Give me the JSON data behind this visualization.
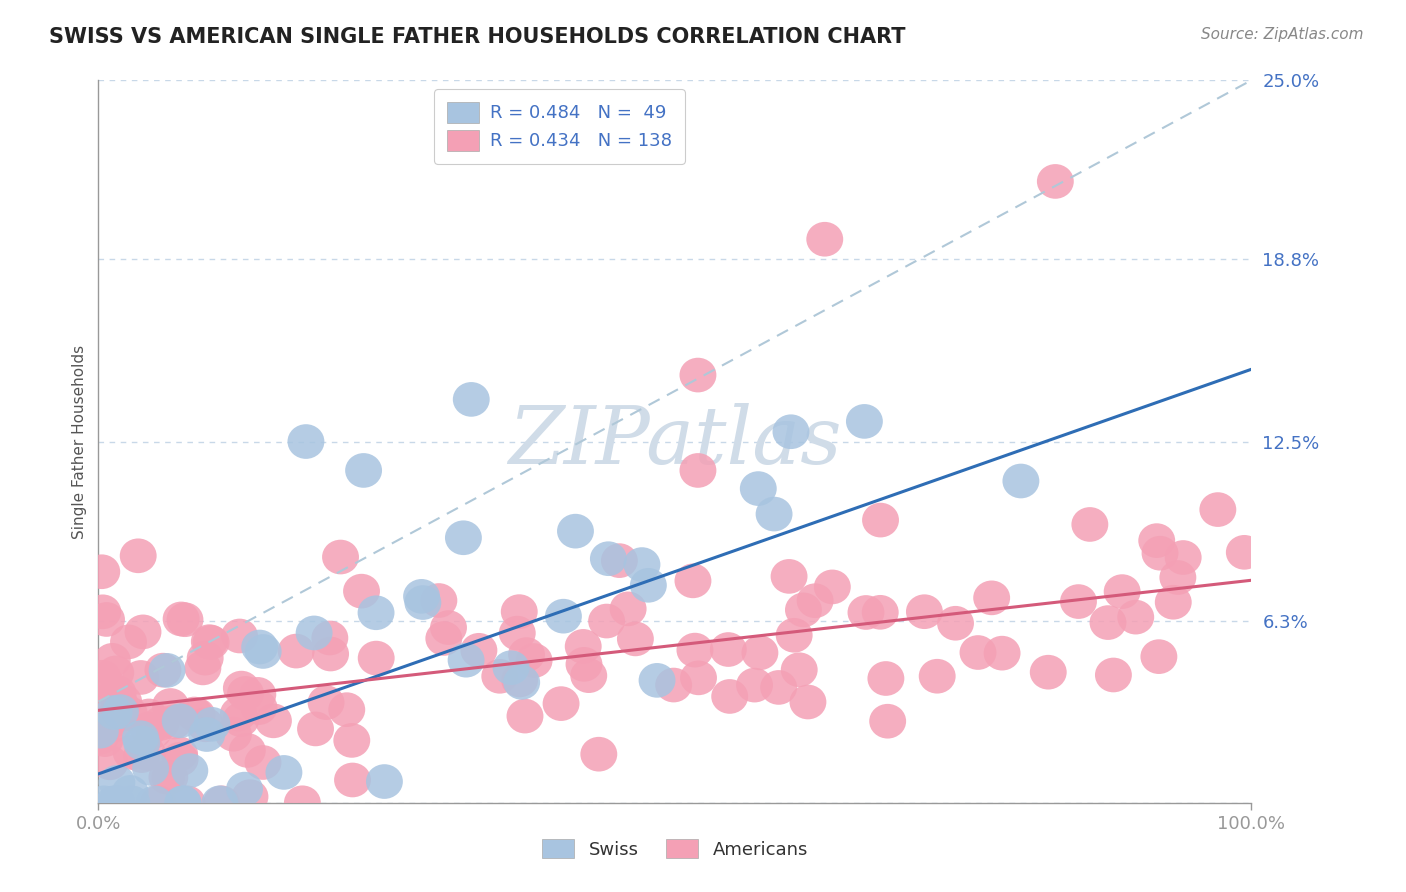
{
  "title": "SWISS VS AMERICAN SINGLE FATHER HOUSEHOLDS CORRELATION CHART",
  "source": "Source: ZipAtlas.com",
  "ylabel": "Single Father Households",
  "ytick_positions": [
    0.0,
    6.3,
    12.5,
    18.8,
    25.0
  ],
  "ytick_labels": [
    "",
    "6.3%",
    "12.5%",
    "18.8%",
    "25.0%"
  ],
  "xlim": [
    0,
    100
  ],
  "ylim": [
    0,
    25.0
  ],
  "swiss_color": "#a8c4e0",
  "swiss_line_color": "#2e6db5",
  "american_color": "#f4a0b5",
  "american_line_color": "#d45a7a",
  "dashed_line_color": "#b0c8d8",
  "background_color": "#ffffff",
  "grid_color": "#c8d8e8",
  "title_color": "#222222",
  "label_color": "#4472c4",
  "axis_color": "#999999",
  "watermark_color": "#d0dce8",
  "swiss_r": 0.484,
  "swiss_n": 49,
  "american_r": 0.434,
  "american_n": 138,
  "swiss_line_intercept": 1.0,
  "swiss_line_slope": 0.14,
  "american_line_intercept": 3.2,
  "american_line_slope": 0.045,
  "dashed_line_intercept": 3.5,
  "dashed_line_slope": 0.215
}
